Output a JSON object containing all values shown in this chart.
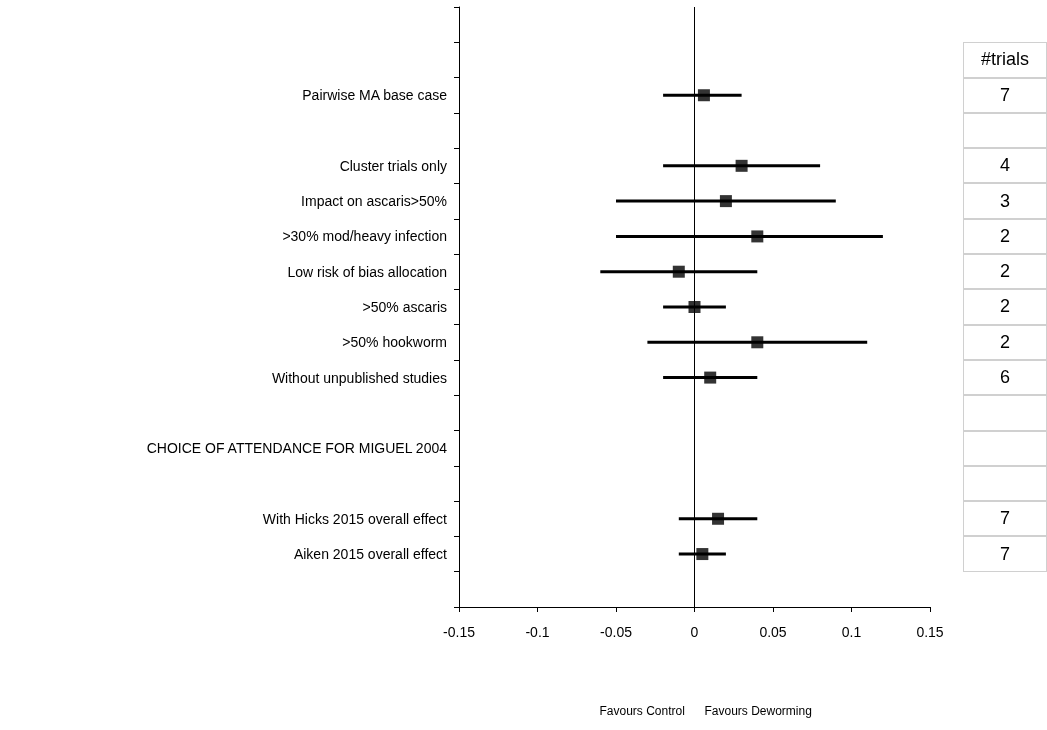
{
  "chart_data": [
    {
      "type": "scatter",
      "orientation": "horizontal",
      "categories": [
        null,
        null,
        "Pairwise MA base case",
        null,
        "Cluster trials only",
        "Impact on ascaris>50%",
        ">30% mod/heavy infection",
        "Low risk of bias allocation",
        ">50% ascaris",
        ">50% hookworm",
        "Without unpublished studies",
        null,
        "CHOICE OF ATTENDANCE FOR MIGUEL 2004",
        null,
        "With Hicks 2015 overall effect",
        "Aiken 2015 overall effect",
        null
      ],
      "values": [
        null,
        null,
        0.006,
        null,
        0.03,
        0.02,
        0.04,
        -0.01,
        0,
        0.04,
        0.01,
        null,
        null,
        null,
        0.015,
        0.005,
        null
      ],
      "errors": [
        null,
        null,
        [
          -0.02,
          0.03
        ],
        null,
        [
          -0.02,
          0.08
        ],
        [
          -0.05,
          0.09
        ],
        [
          -0.05,
          0.12
        ],
        [
          -0.06,
          0.04
        ],
        [
          -0.02,
          0.02
        ],
        [
          -0.03,
          0.11
        ],
        [
          -0.02,
          0.04
        ],
        null,
        null,
        null,
        [
          -0.01,
          0.04
        ],
        [
          -0.01,
          0.02
        ],
        null
      ],
      "color": "#000000",
      "marker": "square",
      "xlim": [
        -0.15,
        0.15
      ],
      "xticks": [
        -0.15,
        -0.1,
        -0.05,
        0,
        0.05,
        0.1,
        0.15
      ],
      "ref_lines": [
        {
          "axis": "x",
          "value": 0,
          "color": "#000000"
        }
      ],
      "annotations": [
        "Favours Control",
        "Favours Deworming"
      ],
      "grid": false
    },
    {
      "type": "other",
      "title": "#trials",
      "values": [
        7,
        null,
        4,
        3,
        2,
        2,
        2,
        2,
        6,
        null,
        null,
        null,
        7,
        7
      ],
      "data_labels": true
    }
  ]
}
